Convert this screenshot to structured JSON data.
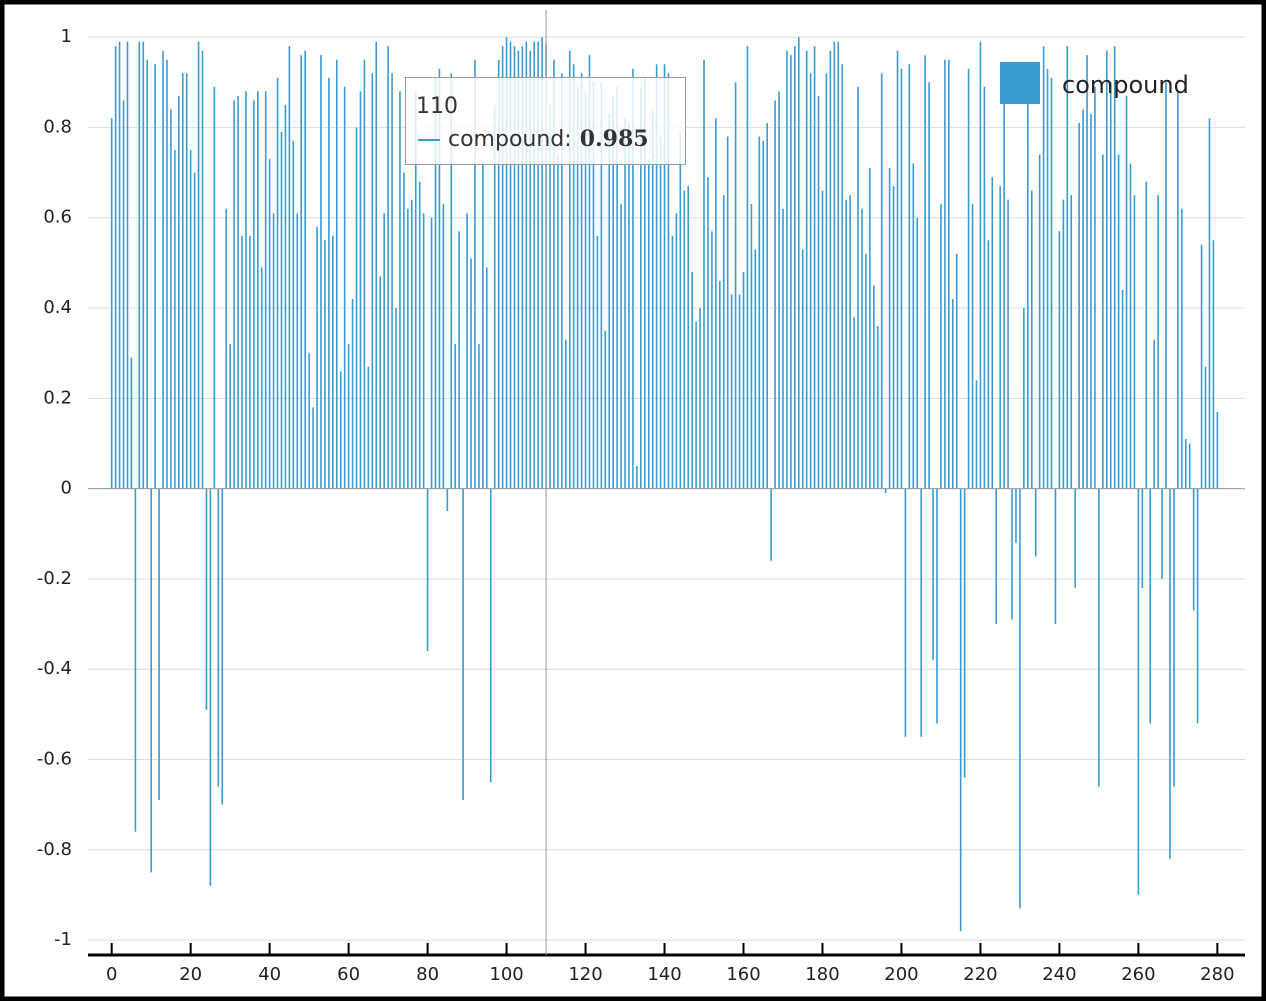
{
  "chart_data": {
    "type": "bar",
    "series": [
      {
        "name": "compound",
        "color": "#3a9bcf",
        "values": [
          0.82,
          0.98,
          0.99,
          0.86,
          0.99,
          0.29,
          -0.76,
          0.99,
          0.99,
          0.95,
          -0.85,
          0.94,
          -0.69,
          0.97,
          0.95,
          0.84,
          0.75,
          0.87,
          0.92,
          0.92,
          0.75,
          0.7,
          0.99,
          0.97,
          -0.49,
          -0.88,
          0.89,
          -0.66,
          -0.7,
          0.62,
          0.32,
          0.86,
          0.87,
          0.56,
          0.88,
          0.56,
          0.86,
          0.88,
          0.49,
          0.88,
          0.73,
          0.61,
          0.91,
          0.79,
          0.85,
          0.98,
          0.77,
          0.61,
          0.96,
          0.97,
          0.3,
          0.18,
          0.58,
          0.96,
          0.55,
          0.91,
          0.56,
          0.95,
          0.26,
          0.89,
          0.32,
          0.42,
          0.8,
          0.88,
          0.95,
          0.27,
          0.92,
          0.99,
          0.47,
          0.61,
          0.98,
          0.92,
          0.4,
          0.88,
          0.7,
          0.62,
          0.64,
          0.88,
          0.68,
          0.61,
          -0.36,
          0.6,
          0.91,
          0.93,
          0.63,
          -0.05,
          0.92,
          0.32,
          0.57,
          -0.69,
          0.61,
          0.51,
          0.95,
          0.32,
          0.73,
          0.49,
          -0.65,
          0.85,
          0.95,
          0.98,
          1.0,
          0.99,
          0.98,
          0.97,
          0.98,
          0.99,
          0.97,
          0.99,
          0.99,
          1.0,
          0.985,
          0.85,
          0.95,
          0.74,
          0.92,
          0.33,
          0.97,
          0.94,
          0.89,
          0.92,
          0.88,
          0.96,
          0.9,
          0.56,
          0.9,
          0.35,
          0.83,
          0.87,
          0.89,
          0.63,
          0.82,
          0.81,
          0.93,
          0.05,
          0.89,
          0.91,
          0.73,
          0.84,
          0.94,
          0.78,
          0.94,
          0.92,
          0.56,
          0.61,
          0.79,
          0.66,
          0.67,
          0.48,
          0.37,
          0.4,
          0.95,
          0.69,
          0.57,
          0.82,
          0.46,
          0.65,
          0.78,
          0.43,
          0.9,
          0.43,
          0.48,
          0.98,
          0.63,
          0.53,
          0.78,
          0.77,
          0.81,
          -0.16,
          0.86,
          0.88,
          0.62,
          0.97,
          0.96,
          0.98,
          1.0,
          0.53,
          0.97,
          0.92,
          0.98,
          0.87,
          0.66,
          0.92,
          0.97,
          0.99,
          0.99,
          0.94,
          0.64,
          0.65,
          0.38,
          0.89,
          0.62,
          0.52,
          0.71,
          0.45,
          0.36,
          0.92,
          -0.01,
          0.71,
          0.67,
          0.97,
          0.93,
          -0.55,
          0.94,
          0.72,
          0.6,
          -0.55,
          0.96,
          0.9,
          -0.38,
          -0.52,
          0.63,
          0.95,
          0.95,
          0.42,
          0.52,
          -0.98,
          -0.64,
          0.93,
          0.63,
          0.24,
          0.99,
          0.89,
          0.55,
          0.69,
          -0.3,
          0.67,
          0.89,
          0.64,
          -0.29,
          -0.12,
          -0.93,
          0.4,
          0.89,
          0.66,
          -0.15,
          0.74,
          0.98,
          0.93,
          0.91,
          -0.3,
          0.57,
          0.64,
          0.98,
          0.65,
          -0.22,
          0.81,
          0.84,
          0.96,
          0.83,
          0.89,
          -0.66,
          0.74,
          0.97,
          0.9,
          0.98,
          0.74,
          0.44,
          0.87,
          0.72,
          0.65,
          -0.9,
          -0.22,
          0.68,
          -0.52,
          0.33,
          0.65,
          -0.2,
          0.9,
          -0.82,
          -0.66,
          0.88,
          0.62,
          0.11,
          0.1,
          -0.27,
          -0.52,
          0.54,
          0.27,
          0.82,
          0.55,
          0.17
        ]
      }
    ],
    "x": [
      0,
      1,
      2,
      3,
      4,
      5,
      6,
      7,
      8,
      9,
      10,
      11,
      12,
      13,
      14,
      15,
      16,
      17,
      18,
      19,
      20,
      21,
      22,
      23,
      24,
      25,
      26,
      27,
      28,
      29,
      30,
      31,
      32,
      33,
      34,
      35,
      36,
      37,
      38,
      39,
      40,
      41,
      42,
      43,
      44,
      45,
      46,
      47,
      48,
      49,
      50,
      51,
      52,
      53,
      54,
      55,
      56,
      57,
      58,
      59,
      60,
      61,
      62,
      63,
      64,
      65,
      66,
      67,
      68,
      69,
      70,
      71,
      72,
      73,
      74,
      75,
      76,
      77,
      78,
      79,
      80,
      81,
      82,
      83,
      84,
      85,
      86,
      87,
      88,
      89,
      90,
      91,
      92,
      93,
      94,
      95,
      96,
      97,
      98,
      99,
      100,
      101,
      102,
      103,
      104,
      105,
      106,
      107,
      108,
      109,
      110,
      111,
      112,
      113,
      114,
      115,
      116,
      117,
      118,
      119,
      120,
      121,
      122,
      123,
      124,
      125,
      126,
      127,
      128,
      129,
      130,
      131,
      132,
      133,
      134,
      135,
      136,
      137,
      138,
      139,
      140,
      141,
      142,
      143,
      144,
      145,
      146,
      147,
      148,
      149,
      150,
      151,
      152,
      153,
      154,
      155,
      156,
      157,
      158,
      159,
      160,
      161,
      162,
      163,
      164,
      165,
      166,
      167,
      168,
      169,
      170,
      171,
      172,
      173,
      174,
      175,
      176,
      177,
      178,
      179,
      180,
      181,
      182,
      183,
      184,
      185,
      186,
      187,
      188,
      189,
      190,
      191,
      192,
      193,
      194,
      195,
      196,
      197,
      198,
      199,
      200,
      201,
      202,
      203,
      204,
      205,
      206,
      207,
      208,
      209,
      210,
      211,
      212,
      213,
      214,
      215,
      216,
      217,
      218,
      219,
      220,
      221,
      222,
      223,
      224,
      225,
      226,
      227,
      228,
      229,
      230,
      231,
      232,
      233,
      234,
      235,
      236,
      237,
      238,
      239,
      240,
      241,
      242,
      243,
      244,
      245,
      246,
      247,
      248,
      249,
      250,
      251,
      252,
      253,
      254,
      255,
      256,
      257,
      258,
      259,
      260,
      261,
      262,
      263,
      264,
      265,
      266,
      267,
      268,
      269,
      270,
      271,
      272,
      273,
      274,
      275,
      276,
      277,
      278,
      279,
      280
    ],
    "xlim": [
      -6,
      287
    ],
    "xticks": [
      0,
      20,
      40,
      60,
      80,
      100,
      120,
      140,
      160,
      180,
      200,
      220,
      240,
      260,
      280
    ],
    "ylim": [
      -1.033,
      1.049
    ],
    "yticks": [
      -1,
      -0.8,
      -0.6,
      -0.4,
      -0.2,
      0,
      0.2,
      0.4,
      0.6,
      0.8,
      1
    ],
    "grid": true,
    "legend": "top-right",
    "tooltip_index": 110
  }
}
